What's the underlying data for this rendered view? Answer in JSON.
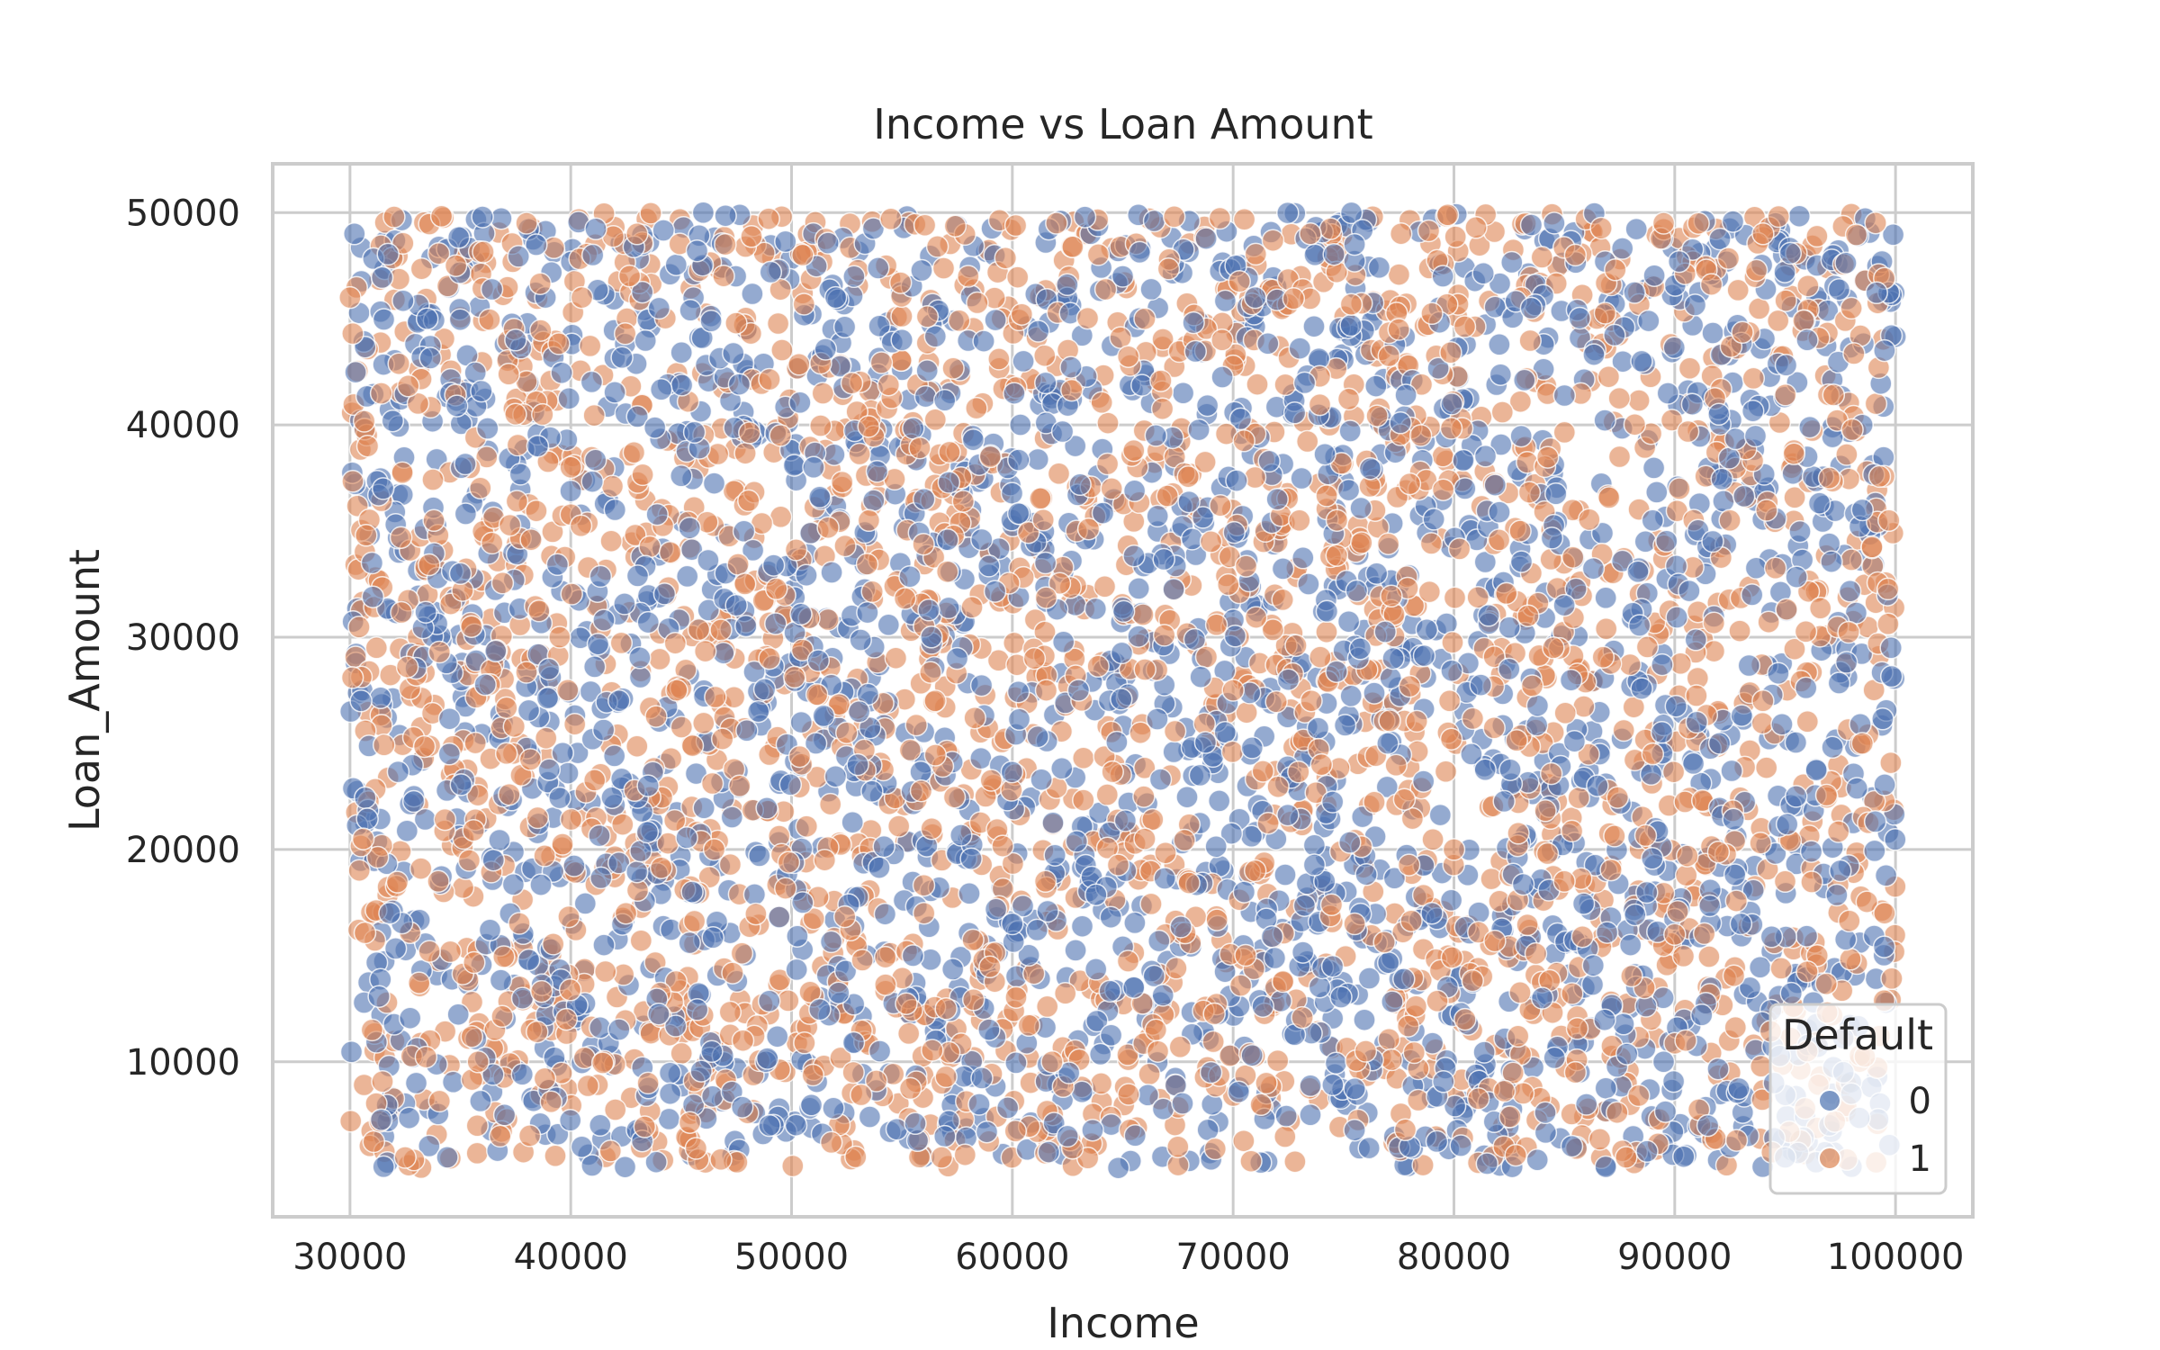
{
  "chart_data": {
    "type": "scatter",
    "title": "Income vs Loan Amount",
    "xlabel": "Income",
    "ylabel": "Loan_Amount",
    "xlim": [
      26500,
      103500
    ],
    "ylim": [
      2700,
      52300
    ],
    "xticks": [
      30000,
      40000,
      50000,
      60000,
      70000,
      80000,
      90000,
      100000
    ],
    "yticks": [
      10000,
      20000,
      30000,
      40000,
      50000
    ],
    "xtick_labels": [
      "30000",
      "40000",
      "50000",
      "60000",
      "70000",
      "80000",
      "90000",
      "100000"
    ],
    "ytick_labels": [
      "10000",
      "20000",
      "30000",
      "40000",
      "50000"
    ],
    "grid": true,
    "legend": {
      "title": "Default",
      "placement": "bottom-right",
      "entries": [
        "0",
        "1"
      ]
    },
    "series_colors": {
      "0": "#4c72b0",
      "1": "#dd8452"
    },
    "marker_alpha": 0.6,
    "x_range": [
      30000,
      100000
    ],
    "y_range": [
      5000,
      50000
    ],
    "point_count": 5000,
    "distribution": "approximately uniform over income and loan amount for both Default groups, heavily overlapping",
    "series": [
      {
        "name": "0",
        "sample_points": [
          [
            30200,
            49000
          ],
          [
            31000,
            33500
          ],
          [
            33500,
            45000
          ],
          [
            36000,
            49800
          ],
          [
            37500,
            44000
          ],
          [
            41000,
            48000
          ],
          [
            44000,
            45500
          ],
          [
            46000,
            50000
          ],
          [
            52000,
            46000
          ],
          [
            55000,
            44000
          ],
          [
            60500,
            43000
          ],
          [
            65000,
            47000
          ],
          [
            71000,
            46000
          ],
          [
            75500,
            48500
          ],
          [
            79500,
            47000
          ],
          [
            83500,
            45500
          ],
          [
            88500,
            43000
          ],
          [
            92000,
            40500
          ],
          [
            96000,
            44000
          ],
          [
            99500,
            43500
          ],
          [
            31500,
            37000
          ],
          [
            35000,
            33000
          ],
          [
            38500,
            39000
          ],
          [
            42000,
            36000
          ],
          [
            47500,
            31500
          ],
          [
            51000,
            38000
          ],
          [
            56000,
            36500
          ],
          [
            61500,
            33500
          ],
          [
            66500,
            39500
          ],
          [
            72000,
            36500
          ],
          [
            76500,
            33000
          ],
          [
            80500,
            37000
          ],
          [
            85000,
            31500
          ],
          [
            89000,
            35500
          ],
          [
            93500,
            32000
          ],
          [
            98500,
            36000
          ],
          [
            30500,
            27000
          ],
          [
            34500,
            24500
          ],
          [
            39000,
            28500
          ],
          [
            43500,
            23000
          ],
          [
            48500,
            26500
          ],
          [
            53000,
            24000
          ],
          [
            57500,
            29000
          ],
          [
            63000,
            27500
          ],
          [
            68500,
            23500
          ],
          [
            72500,
            28000
          ],
          [
            77000,
            25000
          ],
          [
            82500,
            28500
          ],
          [
            86500,
            23000
          ],
          [
            91000,
            26000
          ],
          [
            95500,
            22500
          ],
          [
            99800,
            29500
          ],
          [
            31800,
            17000
          ],
          [
            36500,
            19500
          ],
          [
            41500,
            15500
          ],
          [
            45500,
            18000
          ],
          [
            50500,
            17500
          ],
          [
            55500,
            15000
          ],
          [
            60000,
            16500
          ],
          [
            65500,
            13500
          ],
          [
            70500,
            18000
          ],
          [
            74500,
            14500
          ],
          [
            79000,
            17000
          ],
          [
            84000,
            13000
          ],
          [
            88000,
            15500
          ],
          [
            93000,
            16500
          ],
          [
            97500,
            19000
          ],
          [
            33000,
            9000
          ],
          [
            37000,
            7500
          ],
          [
            40500,
            6000
          ],
          [
            44500,
            8500
          ],
          [
            49000,
            7000
          ],
          [
            54000,
            10500
          ],
          [
            58500,
            8000
          ],
          [
            62500,
            6500
          ],
          [
            64800,
            5000
          ],
          [
            69000,
            9500
          ],
          [
            73500,
            7500
          ],
          [
            78000,
            6000
          ],
          [
            81500,
            5200
          ],
          [
            86000,
            8000
          ],
          [
            89500,
            10000
          ],
          [
            94500,
            9000
          ],
          [
            98000,
            8500
          ],
          [
            95000,
            5500
          ],
          [
            91500,
            7000
          ]
        ]
      },
      {
        "name": "1",
        "sample_points": [
          [
            30000,
            46000
          ],
          [
            32000,
            49800
          ],
          [
            34800,
            47500
          ],
          [
            38000,
            49500
          ],
          [
            40500,
            46000
          ],
          [
            43000,
            49000
          ],
          [
            47000,
            48500
          ],
          [
            50500,
            48000
          ],
          [
            54500,
            49700
          ],
          [
            58000,
            47000
          ],
          [
            62000,
            49500
          ],
          [
            66000,
            45000
          ],
          [
            69500,
            44000
          ],
          [
            73500,
            49000
          ],
          [
            77500,
            44500
          ],
          [
            81000,
            49300
          ],
          [
            85500,
            48000
          ],
          [
            89500,
            49500
          ],
          [
            94000,
            49000
          ],
          [
            98000,
            45500
          ],
          [
            30800,
            39000
          ],
          [
            33800,
            35500
          ],
          [
            37500,
            40500
          ],
          [
            40000,
            38000
          ],
          [
            44500,
            34000
          ],
          [
            49500,
            39500
          ],
          [
            53500,
            35500
          ],
          [
            59000,
            38500
          ],
          [
            64500,
            37000
          ],
          [
            69000,
            34500
          ],
          [
            73000,
            35500
          ],
          [
            78500,
            39500
          ],
          [
            83000,
            35000
          ],
          [
            87500,
            38500
          ],
          [
            92500,
            35500
          ],
          [
            97000,
            37500
          ],
          [
            99700,
            35500
          ],
          [
            31200,
            29500
          ],
          [
            35500,
            30500
          ],
          [
            39500,
            30000
          ],
          [
            44800,
            27500
          ],
          [
            49000,
            29000
          ],
          [
            52500,
            25500
          ],
          [
            56500,
            27000
          ],
          [
            61000,
            29000
          ],
          [
            65800,
            25500
          ],
          [
            70000,
            27500
          ],
          [
            74000,
            24000
          ],
          [
            79800,
            27000
          ],
          [
            84500,
            29500
          ],
          [
            89000,
            24500
          ],
          [
            94000,
            27000
          ],
          [
            98500,
            25000
          ],
          [
            30600,
            20500
          ],
          [
            34000,
            18500
          ],
          [
            38500,
            21500
          ],
          [
            42500,
            17000
          ],
          [
            46500,
            20000
          ],
          [
            51500,
            19500
          ],
          [
            56000,
            17000
          ],
          [
            61500,
            18500
          ],
          [
            66000,
            20500
          ],
          [
            71000,
            19000
          ],
          [
            75500,
            16500
          ],
          [
            80000,
            20000
          ],
          [
            85000,
            18500
          ],
          [
            90000,
            16000
          ],
          [
            95000,
            18500
          ],
          [
            99500,
            17000
          ],
          [
            31000,
            11500
          ],
          [
            35800,
            10000
          ],
          [
            39800,
            12000
          ],
          [
            43500,
            9000
          ],
          [
            47800,
            11000
          ],
          [
            52800,
            9500
          ],
          [
            57000,
            12500
          ],
          [
            61800,
            10000
          ],
          [
            66500,
            11500
          ],
          [
            71500,
            9000
          ],
          [
            76000,
            10500
          ],
          [
            80500,
            12000
          ],
          [
            85500,
            9500
          ],
          [
            90500,
            11000
          ],
          [
            96000,
            10500
          ],
          [
            32500,
            5500
          ],
          [
            36800,
            6500
          ],
          [
            41800,
            5800
          ],
          [
            46800,
            5400
          ],
          [
            51800,
            6200
          ],
          [
            56800,
            5500
          ],
          [
            67500,
            6000
          ],
          [
            72800,
            5300
          ],
          [
            77800,
            6800
          ],
          [
            82800,
            5600
          ],
          [
            87800,
            5500
          ],
          [
            92800,
            6300
          ],
          [
            97800,
            5400
          ]
        ]
      }
    ]
  }
}
